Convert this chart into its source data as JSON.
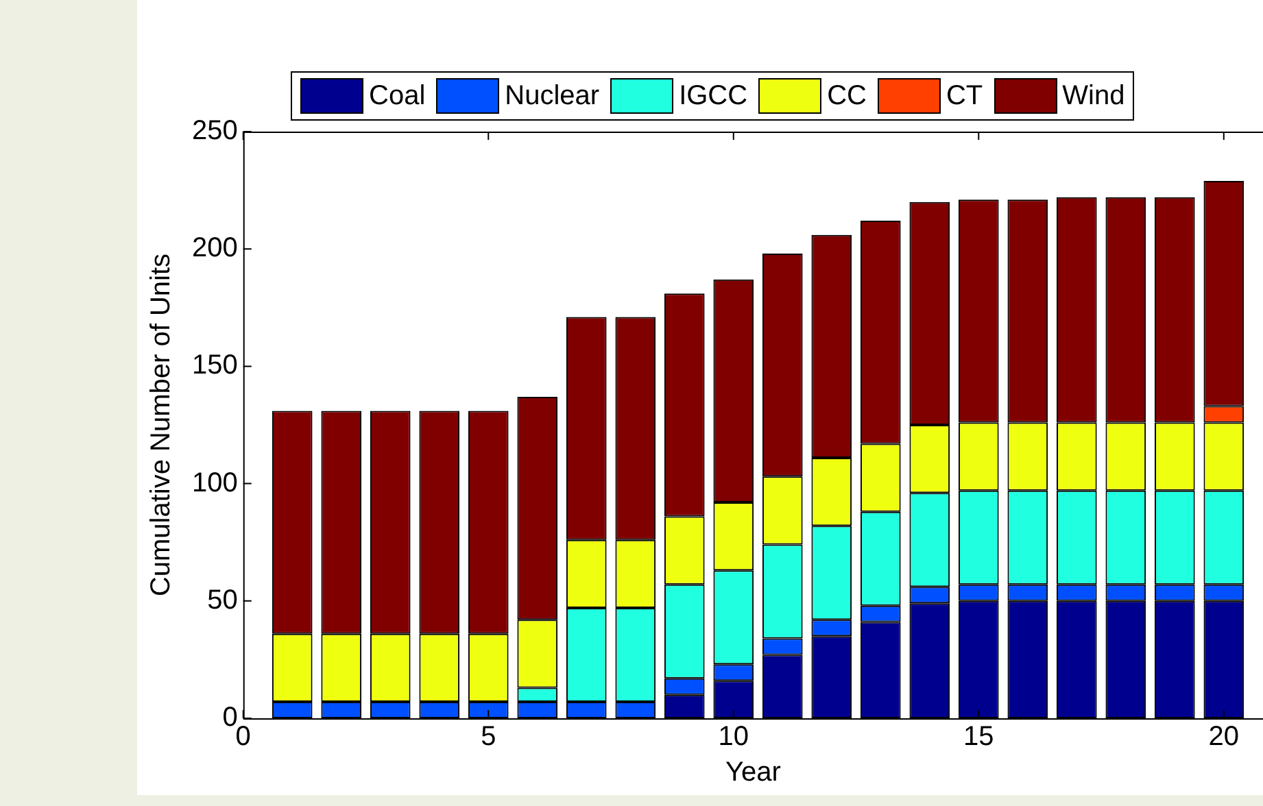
{
  "chart_data": {
    "type": "bar",
    "stacked": true,
    "xlabel": "Year",
    "ylabel": "Cumulative Number of Units",
    "x": [
      1,
      2,
      3,
      4,
      5,
      6,
      7,
      8,
      9,
      10,
      11,
      12,
      13,
      14,
      15,
      16,
      17,
      18,
      19,
      20
    ],
    "xlim": [
      0,
      20.8
    ],
    "xticks": [
      0,
      5,
      10,
      15,
      20
    ],
    "ylim": [
      0,
      250
    ],
    "yticks": [
      0,
      50,
      100,
      150,
      200,
      250
    ],
    "grid": false,
    "legend": "top",
    "series": [
      {
        "name": "Coal",
        "color": "#00008f",
        "values": [
          0,
          0,
          0,
          0,
          0,
          0,
          0,
          0,
          10,
          16,
          27,
          35,
          41,
          49,
          50,
          50,
          50,
          50,
          50,
          50
        ]
      },
      {
        "name": "Nuclear",
        "color": "#0050ff",
        "values": [
          7,
          7,
          7,
          7,
          7,
          7,
          7,
          7,
          7,
          7,
          7,
          7,
          7,
          7,
          7,
          7,
          7,
          7,
          7,
          7
        ]
      },
      {
        "name": "IGCC",
        "color": "#20ffdf",
        "values": [
          0,
          0,
          0,
          0,
          0,
          6,
          40,
          40,
          40,
          40,
          40,
          40,
          40,
          40,
          40,
          40,
          40,
          40,
          40,
          40
        ]
      },
      {
        "name": "CC",
        "color": "#efff10",
        "values": [
          29,
          29,
          29,
          29,
          29,
          29,
          29,
          29,
          29,
          29,
          29,
          29,
          29,
          29,
          29,
          29,
          29,
          29,
          29,
          29
        ]
      },
      {
        "name": "CT",
        "color": "#ff4000",
        "values": [
          0,
          0,
          0,
          0,
          0,
          0,
          0,
          0,
          0,
          0,
          0,
          0,
          0,
          0,
          0,
          0,
          0,
          0,
          0,
          7
        ]
      },
      {
        "name": "Wind",
        "color": "#800000",
        "values": [
          95,
          95,
          95,
          95,
          95,
          95,
          95,
          95,
          95,
          95,
          95,
          95,
          95,
          95,
          95,
          95,
          96,
          96,
          96,
          96
        ]
      }
    ]
  }
}
